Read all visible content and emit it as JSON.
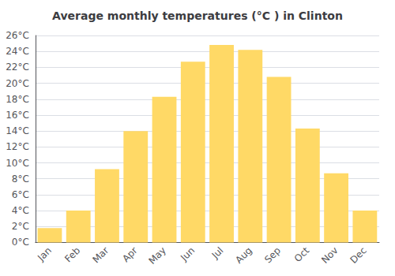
{
  "chart_data": {
    "type": "bar",
    "title": "Average monthly temperatures (°C ) in Clinton",
    "categories": [
      "Jan",
      "Feb",
      "Mar",
      "Apr",
      "May",
      "Jun",
      "Jul",
      "Aug",
      "Sep",
      "Oct",
      "Nov",
      "Dec"
    ],
    "values": [
      1.8,
      4.0,
      9.2,
      14.0,
      18.3,
      22.7,
      24.8,
      24.2,
      20.8,
      14.3,
      8.7,
      4.0
    ],
    "color": "#FFD966",
    "ylim": [
      0,
      26
    ],
    "yticks": [
      {
        "value": 0,
        "label": "0°C"
      },
      {
        "value": 2,
        "label": "2°C"
      },
      {
        "value": 4,
        "label": "4°C"
      },
      {
        "value": 6,
        "label": "6°C"
      },
      {
        "value": 8,
        "label": "8°C"
      },
      {
        "value": 10,
        "label": "10°C"
      },
      {
        "value": 12,
        "label": "12°C"
      },
      {
        "value": 14,
        "label": "14°C"
      },
      {
        "value": 16,
        "label": "16°C"
      },
      {
        "value": 18,
        "label": "18°C"
      },
      {
        "value": 20,
        "label": "20°C"
      },
      {
        "value": 22,
        "label": "22°C"
      },
      {
        "value": 24,
        "label": "24°C"
      },
      {
        "value": 26,
        "label": "26°C"
      }
    ],
    "grid": true
  }
}
